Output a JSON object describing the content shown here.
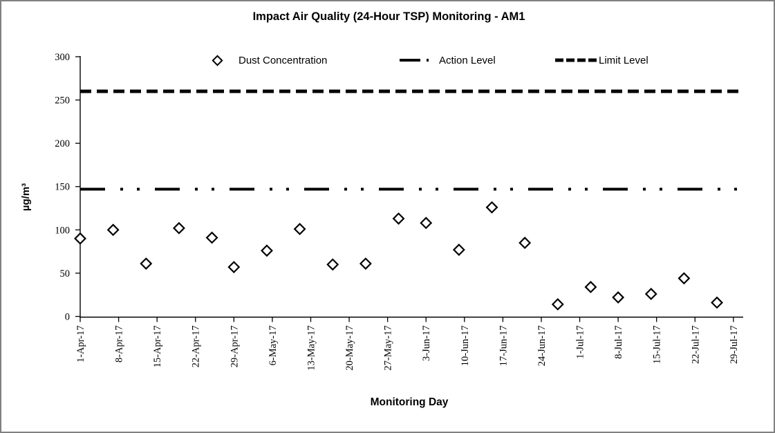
{
  "title": "Impact Air Quality (24-Hour TSP) Monitoring - AM1",
  "frame": {
    "border_color": "#808080",
    "background": "#ffffff",
    "accent": "#000000"
  },
  "chart_data": {
    "type": "scatter",
    "title": "Impact Air Quality (24-Hour TSP) Monitoring - AM1",
    "xlabel": "Monitoring Day",
    "ylabel": "µg/m³",
    "ylim": [
      0,
      300
    ],
    "y_ticks": [
      0,
      50,
      100,
      150,
      200,
      250,
      300
    ],
    "x_tick_labels": [
      "1-Apr-17",
      "8-Apr-17",
      "15-Apr-17",
      "22-Apr-17",
      "29-Apr-17",
      "6-May-17",
      "13-May-17",
      "20-May-17",
      "27-May-17",
      "3-Jun-17",
      "10-Jun-17",
      "17-Jun-17",
      "24-Jun-17",
      "1-Jul-17",
      "8-Jul-17",
      "15-Jul-17",
      "22-Jul-17",
      "29-Jul-17"
    ],
    "x_tick_days": [
      0,
      7,
      14,
      21,
      28,
      35,
      42,
      49,
      56,
      63,
      70,
      77,
      84,
      91,
      98,
      105,
      112,
      119
    ],
    "grid": "off",
    "legend_position": "top",
    "series": [
      {
        "name": "Dust Concentration",
        "type": "points",
        "marker": "open-diamond",
        "color": "#000000",
        "points": [
          {
            "date": "1-Apr-17",
            "day": 0,
            "value": 90
          },
          {
            "date": "7-Apr-17",
            "day": 6,
            "value": 100
          },
          {
            "date": "13-Apr-17",
            "day": 12,
            "value": 61
          },
          {
            "date": "19-Apr-17",
            "day": 18,
            "value": 102
          },
          {
            "date": "25-Apr-17",
            "day": 24,
            "value": 91
          },
          {
            "date": "29-Apr-17",
            "day": 28,
            "value": 57
          },
          {
            "date": "5-May-17",
            "day": 34,
            "value": 76
          },
          {
            "date": "11-May-17",
            "day": 40,
            "value": 101
          },
          {
            "date": "17-May-17",
            "day": 46,
            "value": 60
          },
          {
            "date": "23-May-17",
            "day": 52,
            "value": 61
          },
          {
            "date": "29-May-17",
            "day": 58,
            "value": 113
          },
          {
            "date": "3-Jun-17",
            "day": 63,
            "value": 108
          },
          {
            "date": "9-Jun-17",
            "day": 69,
            "value": 77
          },
          {
            "date": "15-Jun-17",
            "day": 75,
            "value": 126
          },
          {
            "date": "21-Jun-17",
            "day": 81,
            "value": 85
          },
          {
            "date": "27-Jun-17",
            "day": 87,
            "value": 14
          },
          {
            "date": "3-Jul-17",
            "day": 93,
            "value": 34
          },
          {
            "date": "8-Jul-17",
            "day": 98,
            "value": 22
          },
          {
            "date": "14-Jul-17",
            "day": 104,
            "value": 26
          },
          {
            "date": "20-Jul-17",
            "day": 110,
            "value": 44
          },
          {
            "date": "26-Jul-17",
            "day": 116,
            "value": 16
          }
        ]
      },
      {
        "name": "Action Level",
        "type": "hline",
        "value": 147,
        "style": "long-dash-dot-dot",
        "color": "#000000"
      },
      {
        "name": "Limit Level",
        "type": "hline",
        "value": 260,
        "style": "dash",
        "color": "#000000"
      }
    ]
  }
}
